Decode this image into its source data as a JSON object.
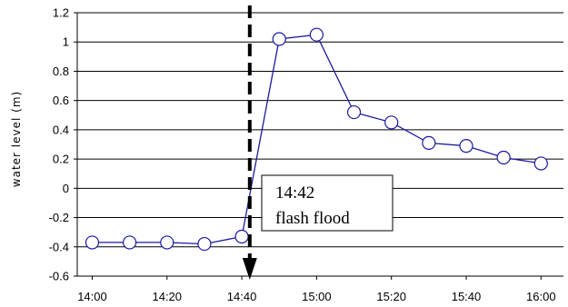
{
  "chart_data": {
    "type": "line",
    "title": "",
    "xlabel": "",
    "ylabel": "water level (m)",
    "ylim": [
      -0.6,
      1.2
    ],
    "yticks": [
      "1.2",
      "1",
      "0.8",
      "0.6",
      "0.4",
      "0.2",
      "0",
      "-0.2",
      "-0.4",
      "-0.6"
    ],
    "xticks": [
      "14:00",
      "14:20",
      "14:40",
      "15:00",
      "15:20",
      "15:40",
      "16:00"
    ],
    "xlim": [
      "13:56",
      "16:06"
    ],
    "grid": "horizontal",
    "legend": "none",
    "series": [
      {
        "color": "#1a1aa0",
        "marker": "open-circle",
        "x": [
          "14:00",
          "14:10",
          "14:20",
          "14:30",
          "14:40",
          "14:50",
          "15:00",
          "15:10",
          "15:20",
          "15:30",
          "15:40",
          "15:50",
          "16:00"
        ],
        "y": [
          -0.37,
          -0.37,
          -0.37,
          -0.38,
          -0.33,
          1.02,
          1.05,
          0.52,
          0.45,
          0.31,
          0.29,
          0.21,
          0.17
        ]
      }
    ],
    "event": {
      "time": "14:42",
      "label_line1": "14:42",
      "label_line2": "flash flood",
      "style": "dashed-vertical-arrow"
    }
  }
}
